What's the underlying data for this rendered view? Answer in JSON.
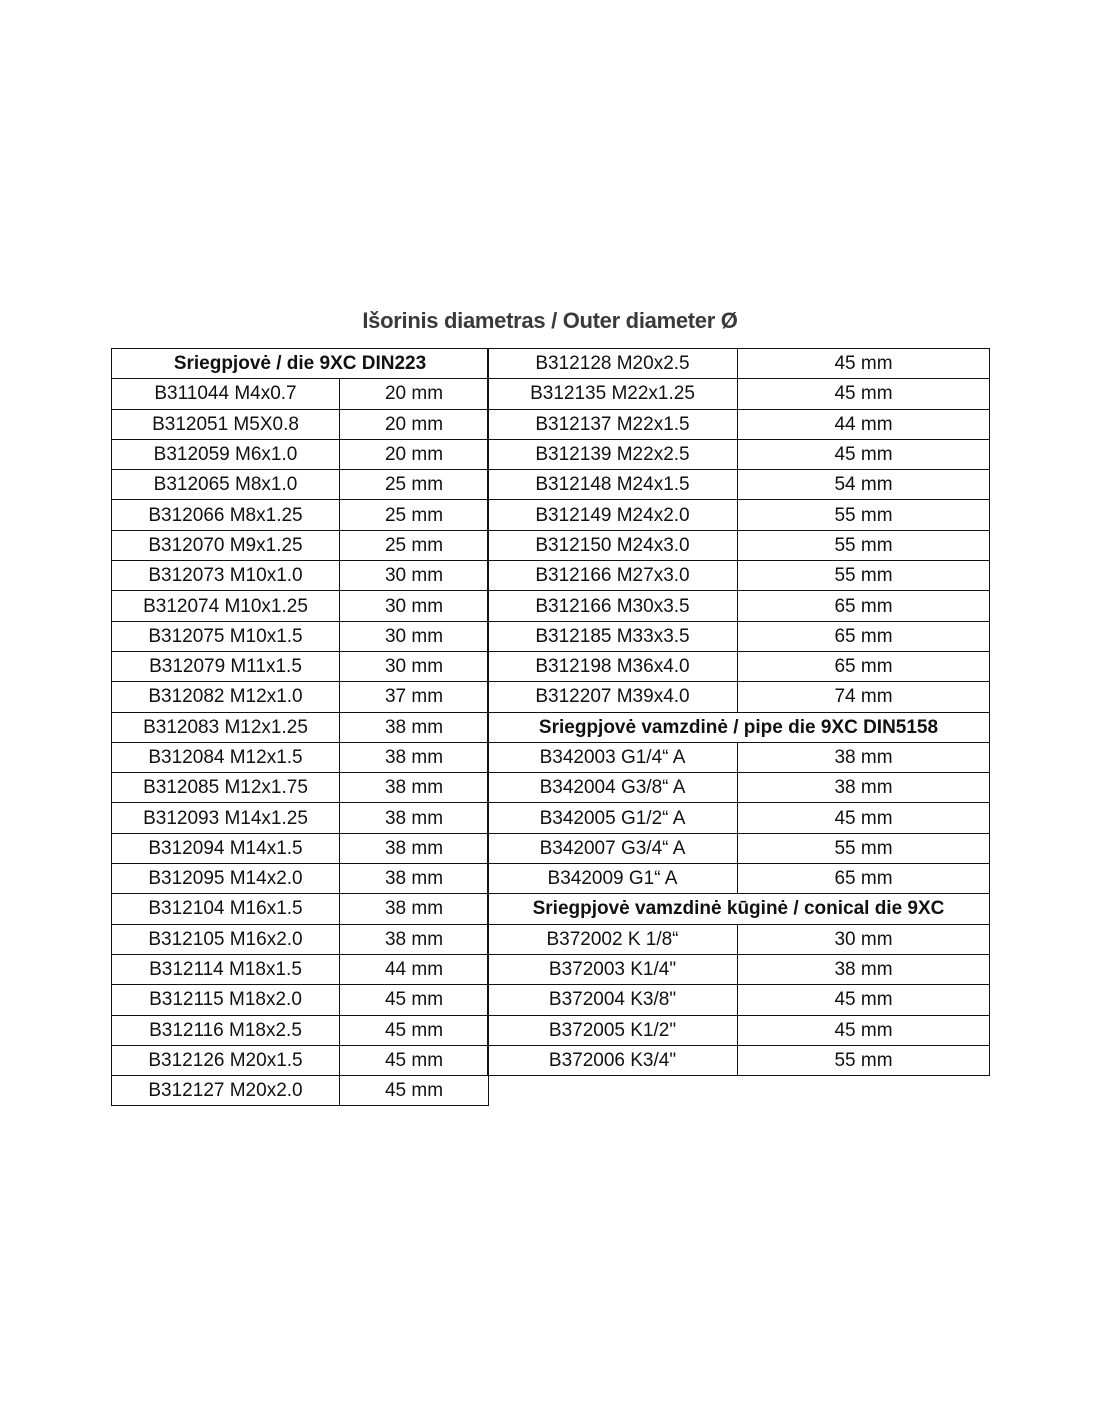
{
  "title": "Išorinis diametras / Outer diameter Ø",
  "left_table": {
    "header": "Sriegpjovė / die 9XC DIN223",
    "rows": [
      [
        "B311044 M4x0.7",
        "20 mm"
      ],
      [
        "B312051 M5X0.8",
        "20 mm"
      ],
      [
        "B312059 M6x1.0",
        "20 mm"
      ],
      [
        "B312065 M8x1.0",
        "25 mm"
      ],
      [
        "B312066 M8x1.25",
        "25 mm"
      ],
      [
        "B312070 M9x1.25",
        "25 mm"
      ],
      [
        "B312073 M10x1.0",
        "30 mm"
      ],
      [
        "B312074 M10x1.25",
        "30 mm"
      ],
      [
        "B312075 M10x1.5",
        "30 mm"
      ],
      [
        "B312079 M11x1.5",
        "30 mm"
      ],
      [
        "B312082 M12x1.0",
        "37 mm"
      ],
      [
        "B312083 M12x1.25",
        "38 mm"
      ],
      [
        "B312084 M12x1.5",
        "38 mm"
      ],
      [
        "B312085 M12x1.75",
        "38 mm"
      ],
      [
        "B312093 M14x1.25",
        "38 mm"
      ],
      [
        "B312094 M14x1.5",
        "38 mm"
      ],
      [
        "B312095 M14x2.0",
        "38 mm"
      ],
      [
        "B312104 M16x1.5",
        "38 mm"
      ],
      [
        "B312105 M16x2.0",
        "38 mm"
      ],
      [
        "B312114 M18x1.5",
        "44 mm"
      ],
      [
        "B312115 M18x2.0",
        "45 mm"
      ],
      [
        "B312116 M18x2.5",
        "45 mm"
      ],
      [
        "B312126 M20x1.5",
        "45 mm"
      ],
      [
        "B312127 M20x2.0",
        "45 mm"
      ]
    ]
  },
  "right_table": {
    "sections": [
      {
        "header": "",
        "rows": [
          [
            "B312128 M20x2.5",
            "45 mm"
          ],
          [
            "B312135 M22x1.25",
            "45 mm"
          ],
          [
            "B312137 M22x1.5",
            "44 mm"
          ],
          [
            "B312139 M22x2.5",
            "45 mm"
          ],
          [
            "B312148 M24x1.5",
            "54 mm"
          ],
          [
            "B312149 M24x2.0",
            "55 mm"
          ],
          [
            "B312150 M24x3.0",
            "55 mm"
          ],
          [
            "B312166 M27x3.0",
            "55 mm"
          ],
          [
            "B312166 M30x3.5",
            "65 mm"
          ],
          [
            "B312185 M33x3.5",
            "65 mm"
          ],
          [
            "B312198 M36x4.0",
            "65 mm"
          ],
          [
            "B312207 M39x4.0",
            "74 mm"
          ]
        ]
      },
      {
        "header": "Sriegpjovė vamzdinė / pipe die 9XC DIN5158",
        "rows": [
          [
            "B342003 G1/4“ A",
            "38 mm"
          ],
          [
            "B342004 G3/8“ A",
            "38 mm"
          ],
          [
            "B342005 G1/2“ A",
            "45 mm"
          ],
          [
            "B342007 G3/4“ A",
            "55 mm"
          ],
          [
            "B342009 G1“ A",
            "65 mm"
          ]
        ]
      },
      {
        "header": "Sriegpjovė vamzdinė kūginė / conical die 9XC",
        "rows": [
          [
            "B372002 K 1/8“",
            "30 mm"
          ],
          [
            "B372003 K1/4\"",
            "38 mm"
          ],
          [
            "B372004 K3/8\"",
            "45 mm"
          ],
          [
            "B372005 K1/2\"",
            "45 mm"
          ],
          [
            "B372006 K3/4\"",
            "55 mm"
          ]
        ]
      }
    ]
  }
}
